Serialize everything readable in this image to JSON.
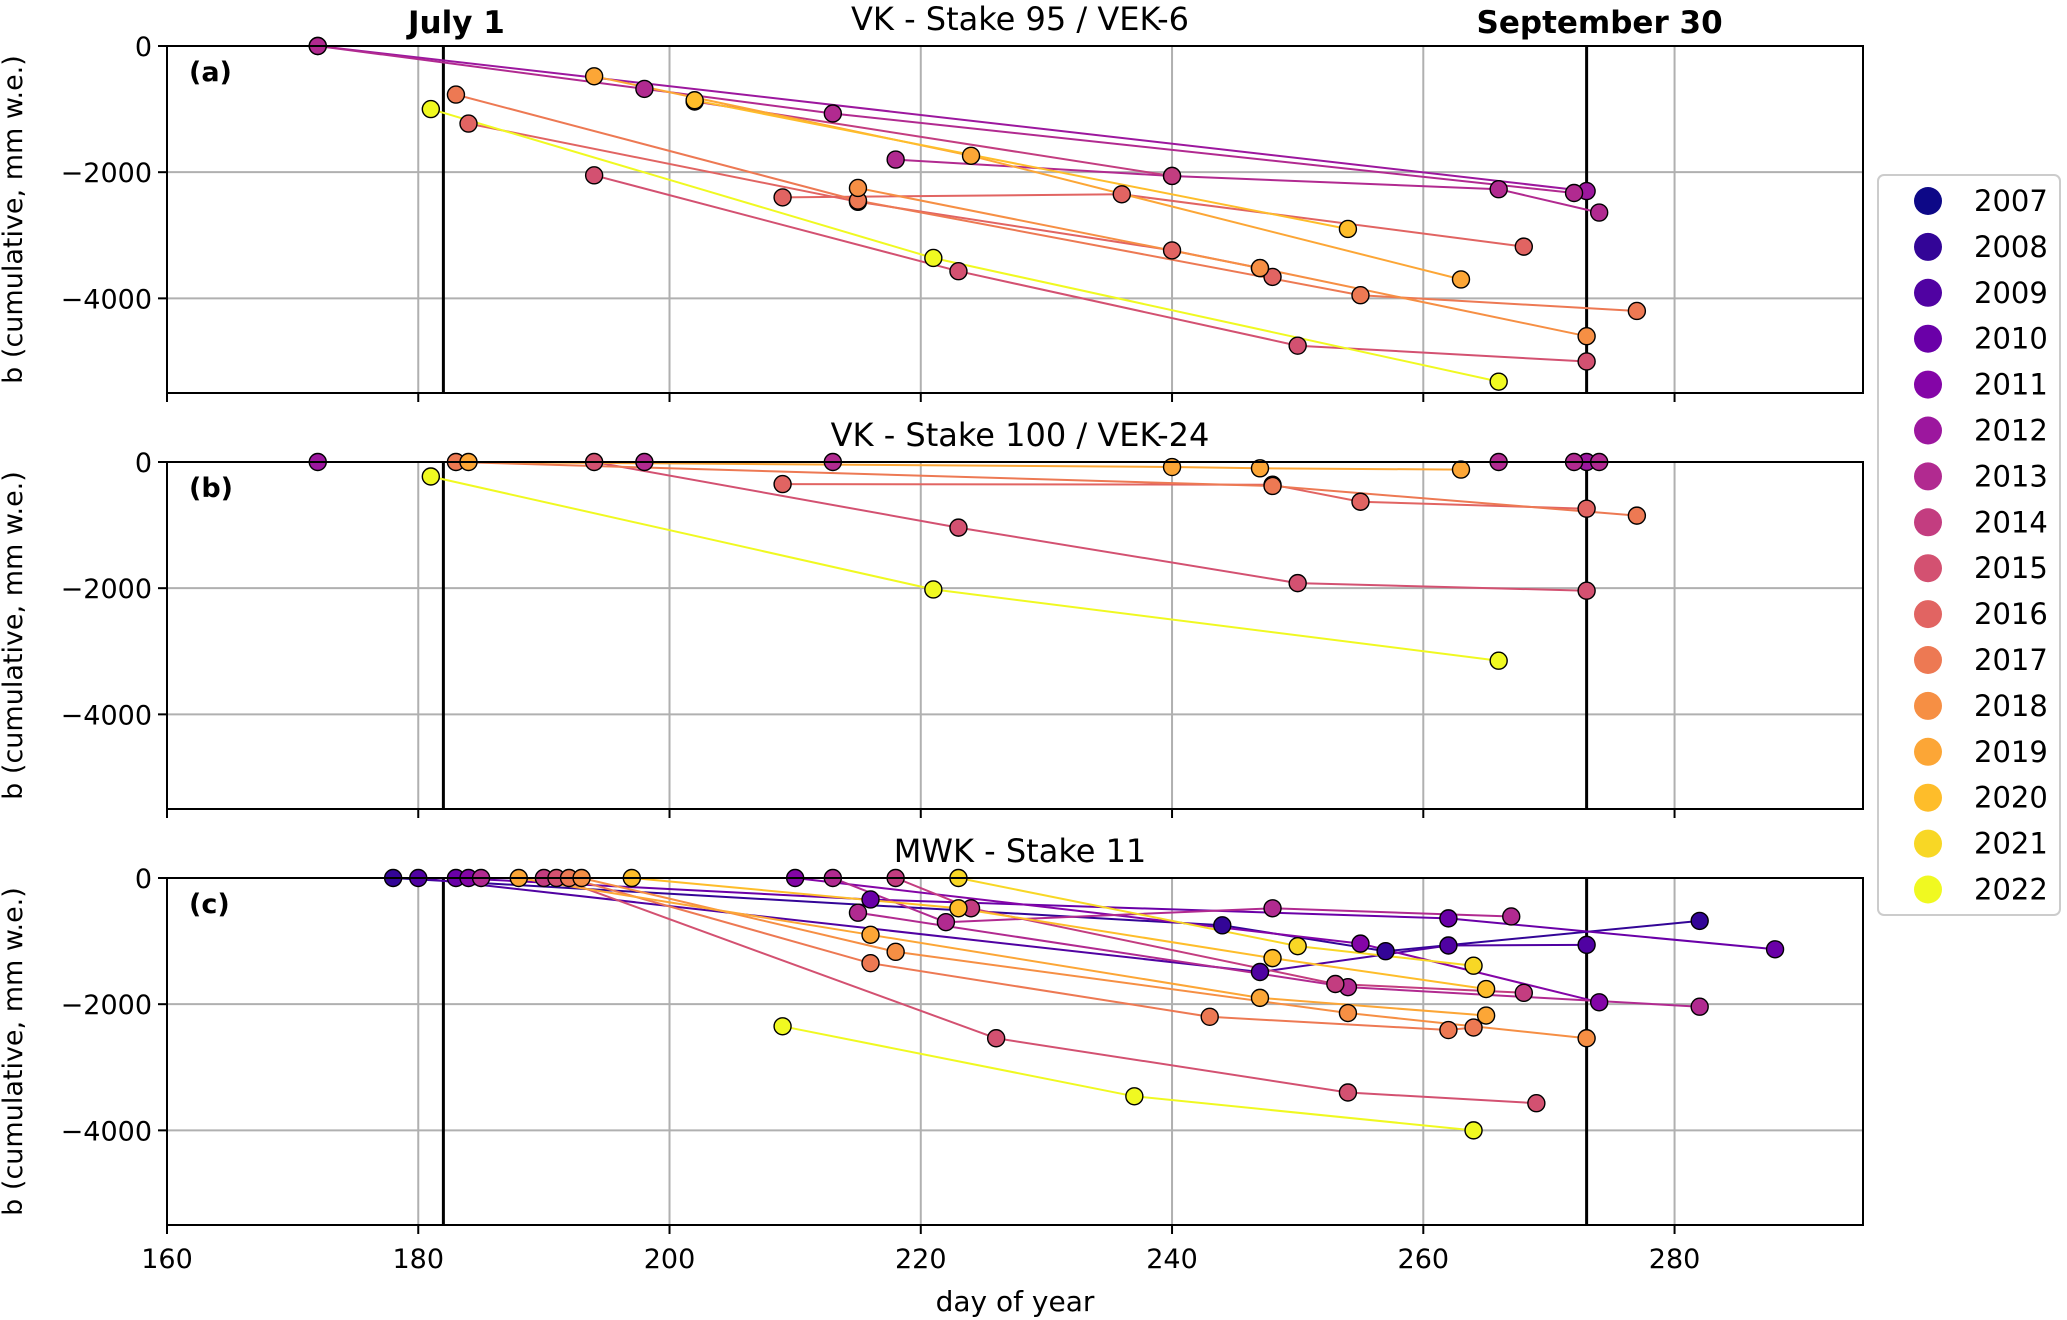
{
  "figure": {
    "xlabel": "day of year",
    "ylabel": "b (cumulative, mm w.e.)",
    "x_ticks": [
      160,
      180,
      200,
      220,
      240,
      260,
      280
    ],
    "y_ticks": [
      0,
      -2000,
      -4000
    ],
    "y_tick_labels": [
      "0",
      "−2000",
      "−4000"
    ],
    "xlim": [
      160,
      295
    ],
    "ylim": [
      -5500,
      0
    ],
    "grid": true,
    "reference_lines": [
      {
        "label": "July 1",
        "x": 182
      },
      {
        "label": "September 30",
        "x": 273
      }
    ]
  },
  "legend": {
    "placement": "right",
    "entries": [
      {
        "label": "2007",
        "color": "#0d0887"
      },
      {
        "label": "2008",
        "color": "#330597"
      },
      {
        "label": "2009",
        "color": "#5002a2"
      },
      {
        "label": "2010",
        "color": "#6a00a8"
      },
      {
        "label": "2011",
        "color": "#8405a7"
      },
      {
        "label": "2012",
        "color": "#9c179e"
      },
      {
        "label": "2013",
        "color": "#b12a90"
      },
      {
        "label": "2014",
        "color": "#c33d80"
      },
      {
        "label": "2015",
        "color": "#d35171"
      },
      {
        "label": "2016",
        "color": "#e16462"
      },
      {
        "label": "2017",
        "color": "#ed7953"
      },
      {
        "label": "2018",
        "color": "#f68f44"
      },
      {
        "label": "2019",
        "color": "#fca636"
      },
      {
        "label": "2020",
        "color": "#febd2a"
      },
      {
        "label": "2021",
        "color": "#f8d725"
      },
      {
        "label": "2022",
        "color": "#f0f921"
      }
    ]
  },
  "chart_data": [
    {
      "type": "line",
      "title": "VK - Stake 95 / VEK-6",
      "panel_label": "(a)",
      "xlabel": "",
      "ylabel": "b (cumulative, mm w.e.)",
      "xlim": [
        160,
        295
      ],
      "ylim": [
        -5500,
        0
      ],
      "series": [
        {
          "name": "2012",
          "points": [
            [
              172,
              0
            ],
            [
              273,
              -2300
            ]
          ]
        },
        {
          "name": "2013",
          "points": [
            [
              172,
              0
            ],
            [
              198,
              -680
            ],
            [
              213,
              -1070
            ],
            [
              272,
              -2330
            ]
          ]
        },
        {
          "name": "2013",
          "points": [
            [
              218,
              -1800
            ],
            [
              240,
              -2060
            ],
            [
              266,
              -2270
            ],
            [
              274,
              -2640
            ]
          ]
        },
        {
          "name": "2014",
          "points": [
            [
              202,
              -880
            ],
            [
              240,
              -2060
            ]
          ]
        },
        {
          "name": "2015",
          "points": [
            [
              194,
              -2050
            ],
            [
              223,
              -3570
            ],
            [
              250,
              -4750
            ],
            [
              273,
              -5000
            ]
          ]
        },
        {
          "name": "2016",
          "points": [
            [
              209,
              -2400
            ],
            [
              236,
              -2350
            ],
            [
              268,
              -3180
            ]
          ]
        },
        {
          "name": "2016",
          "points": [
            [
              184,
              -1230
            ],
            [
              215,
              -2470
            ],
            [
              240,
              -3240
            ],
            [
              247,
              -3520
            ],
            [
              248,
              -3660
            ]
          ]
        },
        {
          "name": "2017",
          "points": [
            [
              183,
              -770
            ],
            [
              215,
              -2450
            ],
            [
              255,
              -3950
            ],
            [
              277,
              -4200
            ]
          ]
        },
        {
          "name": "2018",
          "points": [
            [
              215,
              -2250
            ],
            [
              247,
              -3520
            ],
            [
              273,
              -4600
            ]
          ]
        },
        {
          "name": "2019",
          "points": [
            [
              194,
              -480
            ],
            [
              224,
              -1740
            ],
            [
              263,
              -3700
            ]
          ]
        },
        {
          "name": "2020",
          "points": [
            [
              202,
              -860
            ],
            [
              254,
              -2900
            ]
          ]
        },
        {
          "name": "2022",
          "points": [
            [
              181,
              -1000
            ],
            [
              221,
              -3360
            ],
            [
              266,
              -5320
            ]
          ]
        }
      ]
    },
    {
      "type": "line",
      "title": "VK - Stake 100 / VEK-24",
      "panel_label": "(b)",
      "xlabel": "",
      "ylabel": "b (cumulative, mm w.e.)",
      "xlim": [
        160,
        295
      ],
      "ylim": [
        -5500,
        0
      ],
      "series": [
        {
          "name": "2012",
          "points": [
            [
              172,
              0
            ],
            [
              273,
              0
            ]
          ]
        },
        {
          "name": "2013",
          "points": [
            [
              198,
              0
            ],
            [
              213,
              0
            ],
            [
              266,
              0
            ],
            [
              272,
              0
            ],
            [
              274,
              0
            ]
          ]
        },
        {
          "name": "2015",
          "points": [
            [
              194,
              0
            ],
            [
              223,
              -1040
            ],
            [
              250,
              -1920
            ],
            [
              273,
              -2040
            ]
          ]
        },
        {
          "name": "2016",
          "points": [
            [
              209,
              -350
            ],
            [
              248,
              -360
            ],
            [
              255,
              -630
            ],
            [
              273,
              -740
            ]
          ]
        },
        {
          "name": "2017",
          "points": [
            [
              183,
              0
            ],
            [
              248,
              -380
            ],
            [
              277,
              -850
            ]
          ]
        },
        {
          "name": "2019",
          "points": [
            [
              184,
              0
            ],
            [
              240,
              -80
            ],
            [
              247,
              -100
            ],
            [
              263,
              -120
            ]
          ]
        },
        {
          "name": "2022",
          "points": [
            [
              181,
              -230
            ],
            [
              221,
              -2020
            ],
            [
              266,
              -3150
            ]
          ]
        }
      ]
    },
    {
      "type": "line",
      "title": "MWK - Stake 11",
      "panel_label": "(c)",
      "xlabel": "day of year",
      "ylabel": "b (cumulative, mm w.e.)",
      "xlim": [
        160,
        295
      ],
      "ylim": [
        -5500,
        0
      ],
      "series": [
        {
          "name": "2008",
          "points": [
            [
              178,
              0
            ],
            [
              244,
              -750
            ],
            [
              257,
              -1160
            ],
            [
              282,
              -680
            ]
          ]
        },
        {
          "name": "2009",
          "points": [
            [
              180,
              0
            ],
            [
              247,
              -1490
            ],
            [
              262,
              -1070
            ],
            [
              273,
              -1060
            ]
          ]
        },
        {
          "name": "2010",
          "points": [
            [
              183,
              0
            ],
            [
              216,
              -340
            ],
            [
              262,
              -640
            ],
            [
              288,
              -1130
            ]
          ]
        },
        {
          "name": "2011",
          "points": [
            [
              184,
              0
            ],
            [
              210,
              0
            ],
            [
              255,
              -1040
            ],
            [
              274,
              -1970
            ]
          ]
        },
        {
          "name": "2013",
          "points": [
            [
              185,
              0
            ],
            [
              213,
              0
            ],
            [
              222,
              -700
            ],
            [
              248,
              -480
            ],
            [
              267,
              -610
            ]
          ]
        },
        {
          "name": "2013",
          "points": [
            [
              215,
              -550
            ],
            [
              254,
              -1730
            ],
            [
              282,
              -2040
            ]
          ]
        },
        {
          "name": "2014",
          "points": [
            [
              190,
              0
            ],
            [
              218,
              0
            ],
            [
              224,
              -480
            ],
            [
              253,
              -1680
            ],
            [
              268,
              -1820
            ]
          ]
        },
        {
          "name": "2015",
          "points": [
            [
              191,
              0
            ],
            [
              226,
              -2540
            ],
            [
              254,
              -3400
            ],
            [
              269,
              -3570
            ]
          ]
        },
        {
          "name": "2017",
          "points": [
            [
              192,
              0
            ],
            [
              216,
              -1350
            ],
            [
              243,
              -2200
            ],
            [
              262,
              -2410
            ],
            [
              264,
              -2370
            ]
          ]
        },
        {
          "name": "2018",
          "points": [
            [
              193,
              0
            ],
            [
              218,
              -1170
            ],
            [
              254,
              -2140
            ],
            [
              273,
              -2540
            ]
          ]
        },
        {
          "name": "2019",
          "points": [
            [
              188,
              0
            ],
            [
              216,
              -900
            ],
            [
              247,
              -1900
            ],
            [
              265,
              -2180
            ]
          ]
        },
        {
          "name": "2020",
          "points": [
            [
              197,
              0
            ],
            [
              223,
              -480
            ],
            [
              248,
              -1270
            ],
            [
              265,
              -1760
            ]
          ]
        },
        {
          "name": "2021",
          "points": [
            [
              223,
              0
            ],
            [
              250,
              -1080
            ],
            [
              264,
              -1390
            ]
          ]
        },
        {
          "name": "2022",
          "points": [
            [
              209,
              -2350
            ],
            [
              237,
              -3460
            ],
            [
              264,
              -4000
            ]
          ]
        }
      ]
    }
  ]
}
